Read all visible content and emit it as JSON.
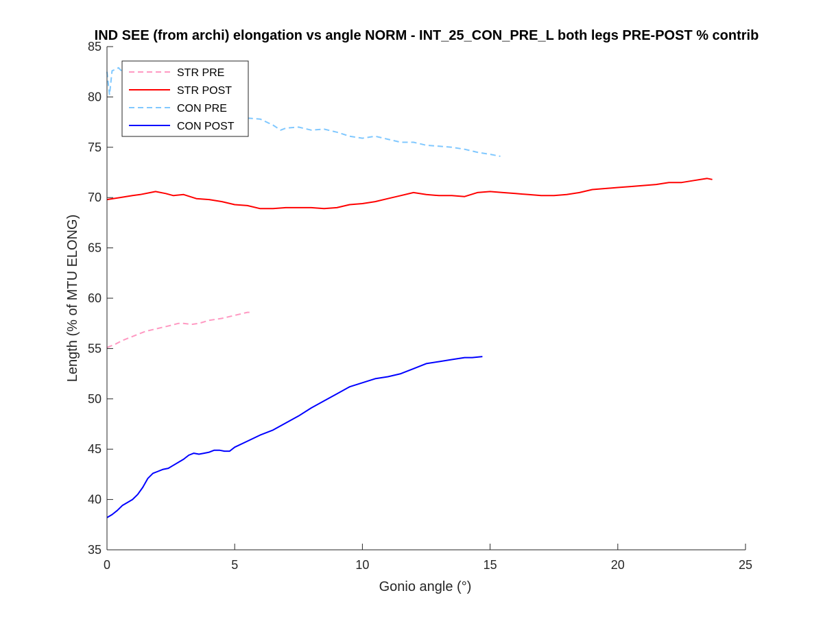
{
  "chart_data": {
    "type": "line",
    "title": "IND SEE (from archi) elongation vs angle NORM - INT_25_CON_PRE_L both legs PRE-POST % contrib",
    "xlabel": "Gonio angle (°)",
    "ylabel": "Length (% of MTU ELONG)",
    "xlim": [
      0,
      25
    ],
    "ylim": [
      35,
      85
    ],
    "xticks": [
      0,
      5,
      10,
      15,
      20,
      25
    ],
    "yticks": [
      35,
      40,
      45,
      50,
      55,
      60,
      65,
      70,
      75,
      80,
      85
    ],
    "grid": false,
    "legend_position": "top-left",
    "series": [
      {
        "name": "STR PRE",
        "color": "#ff99c2",
        "dash": "dashed",
        "x": [
          0,
          0.3,
          0.6,
          1.0,
          1.5,
          2.0,
          2.5,
          2.8,
          3.0,
          3.3,
          3.6,
          4.0,
          4.5,
          5.0,
          5.5,
          5.6
        ],
        "y": [
          55.1,
          55.4,
          55.8,
          56.2,
          56.7,
          57.0,
          57.3,
          57.5,
          57.5,
          57.4,
          57.5,
          57.8,
          58.0,
          58.3,
          58.6,
          58.6
        ]
      },
      {
        "name": "STR POST",
        "color": "#ff0000",
        "dash": "solid",
        "x": [
          0,
          0.5,
          1.0,
          1.3,
          1.7,
          1.9,
          2.3,
          2.6,
          3.0,
          3.5,
          4.0,
          4.5,
          5.0,
          5.5,
          6.0,
          6.5,
          7.0,
          7.5,
          8.0,
          8.5,
          9.0,
          9.5,
          10.0,
          10.5,
          11.0,
          11.5,
          12.0,
          12.5,
          13.0,
          13.5,
          14.0,
          14.5,
          15.0,
          15.5,
          16.0,
          16.5,
          17.0,
          17.5,
          18.0,
          18.5,
          19.0,
          19.5,
          20.0,
          20.5,
          21.0,
          21.5,
          22.0,
          22.5,
          23.0,
          23.5,
          23.7
        ],
        "y": [
          69.8,
          70.0,
          70.2,
          70.3,
          70.5,
          70.6,
          70.4,
          70.2,
          70.3,
          69.9,
          69.8,
          69.6,
          69.3,
          69.2,
          68.9,
          68.9,
          69.0,
          69.0,
          69.0,
          68.9,
          69.0,
          69.3,
          69.4,
          69.6,
          69.9,
          70.2,
          70.5,
          70.3,
          70.2,
          70.2,
          70.1,
          70.5,
          70.6,
          70.5,
          70.4,
          70.3,
          70.2,
          70.2,
          70.3,
          70.5,
          70.8,
          70.9,
          71.0,
          71.1,
          71.2,
          71.3,
          71.5,
          71.5,
          71.7,
          71.9,
          71.8
        ]
      },
      {
        "name": "CON PRE",
        "color": "#80c8ff",
        "dash": "dashed",
        "x": [
          0,
          0.1,
          0.2,
          0.3,
          0.45,
          0.6,
          0.9,
          1.5,
          2.5,
          3.5,
          4.5,
          5.5,
          6.0,
          6.5,
          6.8,
          7.0,
          7.5,
          8.0,
          8.5,
          9.0,
          9.5,
          10.0,
          10.5,
          11.0,
          11.5,
          12.0,
          12.5,
          13.0,
          13.5,
          14.0,
          14.5,
          15.0,
          15.4
        ],
        "y": [
          82.5,
          80.2,
          82.6,
          82.7,
          82.9,
          82.5,
          81.8,
          80.8,
          79.5,
          78.8,
          78.3,
          77.9,
          77.8,
          77.2,
          76.7,
          76.9,
          77.0,
          76.7,
          76.8,
          76.5,
          76.1,
          75.9,
          76.1,
          75.8,
          75.5,
          75.5,
          75.2,
          75.1,
          75.0,
          74.8,
          74.5,
          74.3,
          74.1
        ]
      },
      {
        "name": "CON POST",
        "color": "#0000ff",
        "dash": "solid",
        "x": [
          0,
          0.2,
          0.4,
          0.6,
          0.8,
          1.0,
          1.2,
          1.4,
          1.6,
          1.8,
          2.0,
          2.2,
          2.4,
          2.6,
          2.8,
          3.0,
          3.2,
          3.4,
          3.6,
          3.8,
          4.0,
          4.2,
          4.4,
          4.6,
          4.8,
          5.0,
          5.5,
          6.0,
          6.5,
          7.0,
          7.5,
          8.0,
          8.5,
          9.0,
          9.5,
          10.0,
          10.5,
          11.0,
          11.5,
          12.0,
          12.5,
          13.0,
          13.5,
          14.0,
          14.3,
          14.7
        ],
        "y": [
          38.2,
          38.5,
          38.9,
          39.4,
          39.7,
          40.0,
          40.5,
          41.2,
          42.1,
          42.6,
          42.8,
          43.0,
          43.1,
          43.4,
          43.7,
          44.0,
          44.4,
          44.6,
          44.5,
          44.6,
          44.7,
          44.9,
          44.9,
          44.8,
          44.8,
          45.2,
          45.8,
          46.4,
          46.9,
          47.6,
          48.3,
          49.1,
          49.8,
          50.5,
          51.2,
          51.6,
          52.0,
          52.2,
          52.5,
          53.0,
          53.5,
          53.7,
          53.9,
          54.1,
          54.1,
          54.2
        ]
      }
    ]
  }
}
